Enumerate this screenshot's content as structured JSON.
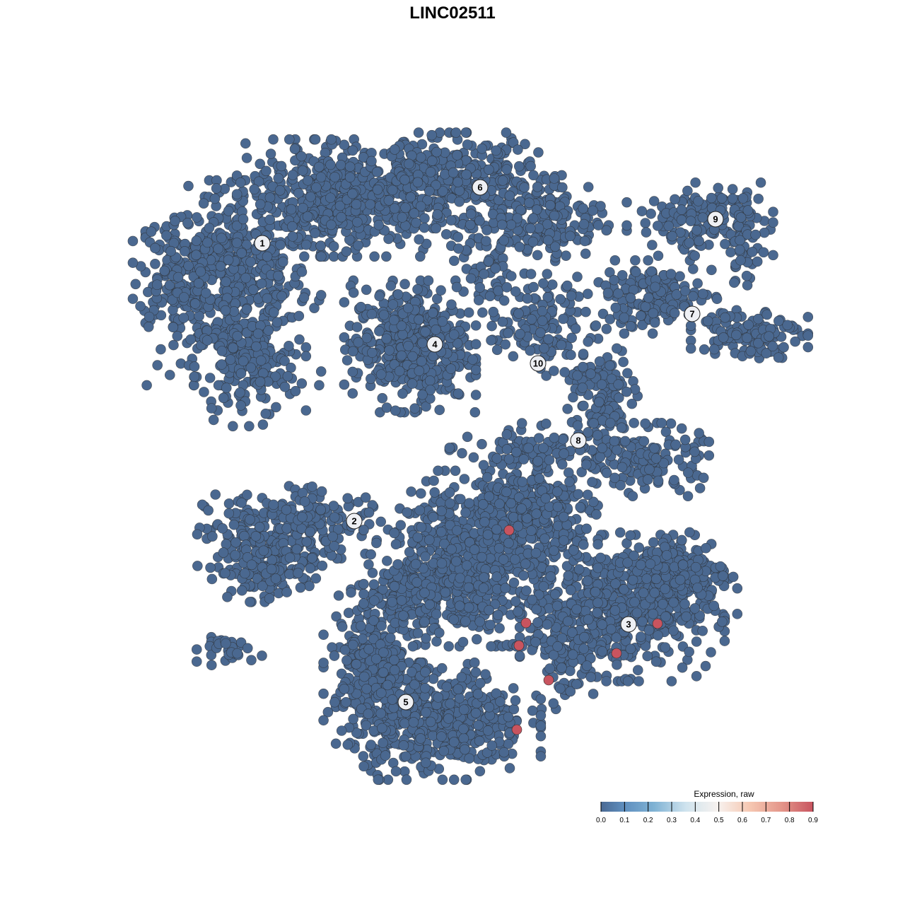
{
  "chart_data": {
    "type": "scatter",
    "title": "LINC02511",
    "xlabel": "",
    "ylabel": "",
    "grid": false,
    "axes_visible": false,
    "point_color_default": "#4a6890",
    "point_stroke": "#2b2b2b",
    "default_expression": 0.0,
    "clusters": [
      {
        "label": "1",
        "label_pos": [
          -13.45,
          14.8
        ],
        "lobes": [
          [
            -15.5,
            12,
            3,
            3.5,
            500
          ],
          [
            -14.5,
            6,
            2,
            2,
            150
          ],
          [
            -19.5,
            13,
            1.5,
            2,
            100
          ]
        ]
      },
      {
        "label": "2",
        "label_pos": [
          -6.95,
          -4.85
        ],
        "lobes": [
          [
            -13,
            -6,
            2.5,
            1.75,
            200
          ],
          [
            -13.5,
            -8.5,
            1.75,
            1,
            100
          ],
          [
            -15.5,
            -14,
            1.25,
            0.5,
            30
          ],
          [
            -9.5,
            -5,
            2,
            1.25,
            80
          ]
        ]
      },
      {
        "label": "3",
        "label_pos": [
          12.45,
          -12.15
        ],
        "lobes": [
          [
            12,
            -11,
            3.5,
            2.5,
            500
          ],
          [
            16,
            -8.5,
            2,
            1.5,
            200
          ],
          [
            8,
            -14,
            1.25,
            2,
            100
          ]
        ]
      },
      {
        "label": "4",
        "label_pos": [
          -1.25,
          7.65
        ],
        "lobes": [
          [
            -3,
            7.5,
            2.25,
            2.25,
            450
          ]
        ]
      },
      {
        "label": "5",
        "label_pos": [
          -3.3,
          -17.65
        ],
        "lobes": [
          [
            -1,
            -19,
            3.5,
            2,
            500
          ],
          [
            -5.5,
            -14.5,
            1.75,
            2.5,
            250
          ],
          [
            -2,
            -10.5,
            2.5,
            1.5,
            150
          ],
          [
            2,
            -7.5,
            4,
            3,
            600
          ],
          [
            5,
            -4,
            2.5,
            1.5,
            200
          ]
        ]
      },
      {
        "label": "6",
        "label_pos": [
          1.95,
          18.75
        ],
        "lobes": [
          [
            -8,
            18,
            3.5,
            2,
            500
          ],
          [
            0,
            19,
            3.5,
            1.75,
            400
          ],
          [
            7,
            16.5,
            2,
            1.5,
            150
          ],
          [
            2.5,
            13,
            1.25,
            1.5,
            60
          ]
        ]
      },
      {
        "label": "7",
        "label_pos": [
          16.95,
          9.8
        ],
        "lobes": [
          [
            14,
            11,
            2.5,
            1.25,
            150
          ],
          [
            21,
            8.5,
            2,
            1,
            120
          ]
        ]
      },
      {
        "label": "8",
        "label_pos": [
          8.9,
          0.85
        ],
        "lobes": [
          [
            10.5,
            4,
            1.25,
            2,
            120
          ],
          [
            14,
            -0.5,
            2,
            1.25,
            150
          ],
          [
            6,
            0,
            3,
            1,
            100
          ]
        ]
      },
      {
        "label": "9",
        "label_pos": [
          18.6,
          16.5
        ],
        "lobes": [
          [
            17.5,
            16.5,
            2.5,
            1.25,
            150
          ],
          [
            20.5,
            15,
            0.75,
            1.75,
            50
          ]
        ]
      },
      {
        "label": "10",
        "label_pos": [
          6.05,
          6.3
        ],
        "lobes": [
          [
            6,
            9,
            2,
            1.75,
            120
          ]
        ]
      }
    ],
    "expressed_points": [
      {
        "x": 4.0,
        "y": -5.5,
        "value": 0.9
      },
      {
        "x": 5.2,
        "y": -12.05,
        "value": 0.9
      },
      {
        "x": 4.7,
        "y": -13.65,
        "value": 0.9
      },
      {
        "x": 6.8,
        "y": -16.1,
        "value": 0.9
      },
      {
        "x": 4.55,
        "y": -19.6,
        "value": 0.9
      },
      {
        "x": 11.6,
        "y": -14.2,
        "value": 0.9
      },
      {
        "x": 14.5,
        "y": -12.1,
        "value": 0.9
      }
    ],
    "legend": {
      "title": "Expression, raw",
      "placement": "bottom-right",
      "range": [
        0,
        0.9
      ],
      "ticks": [
        "0.0",
        "0.1",
        "0.2",
        "0.3",
        "0.4",
        "0.5",
        "0.6",
        "0.7",
        "0.8",
        "0.9"
      ],
      "colors": [
        "#4a6a94",
        "#6e9fcb",
        "#a7cfe3",
        "#f6f6f6",
        "#f5bfa6",
        "#c8545f"
      ]
    }
  }
}
